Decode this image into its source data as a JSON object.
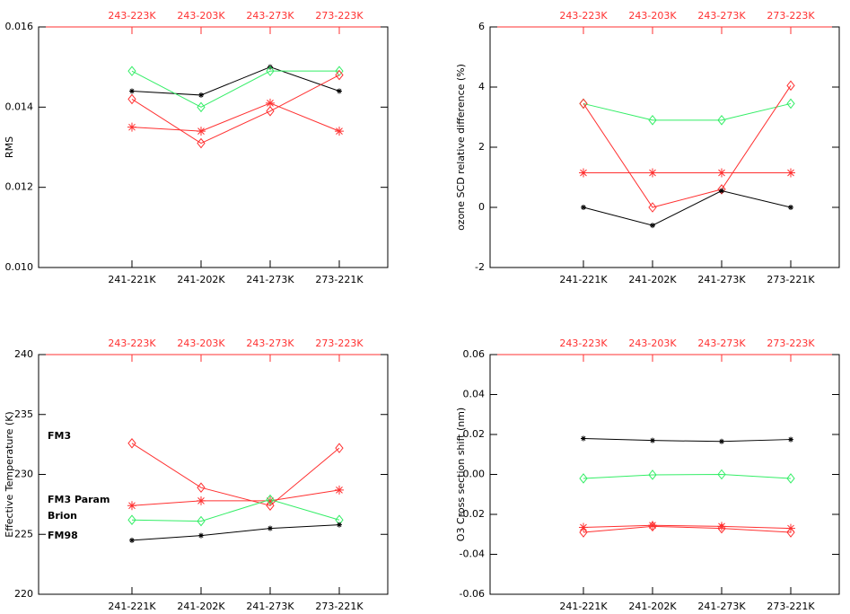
{
  "chart_data": [
    {
      "type": "line",
      "y_label": "RMS",
      "categories": [
        "241-221K",
        "241-202K",
        "241-273K",
        "273-221K"
      ],
      "top_categories": [
        "243-223K",
        "243-203K",
        "243-273K",
        "273-223K"
      ],
      "ylim": [
        0.01,
        0.016
      ],
      "yticks": [
        {
          "value": 0.01,
          "label": "0.010"
        },
        0.012,
        0.014,
        0.016
      ],
      "series": [
        {
          "color": "#000000",
          "marker": "asterisk",
          "values": [
            0.0144,
            0.0143,
            0.015,
            0.0144
          ]
        },
        {
          "color": "#33ee66",
          "marker": "diamond",
          "values": [
            0.0149,
            0.014,
            0.0149,
            0.0149
          ]
        },
        {
          "color": "#ff3030",
          "marker": "diamond",
          "values": [
            0.0142,
            0.0131,
            0.0139,
            0.0148
          ]
        },
        {
          "color": "#ff3030",
          "marker": "asterisk",
          "values": [
            0.0135,
            0.0134,
            0.0141,
            0.0134
          ]
        }
      ]
    },
    {
      "type": "line",
      "y_label": "ozone SCD relative difference (%)",
      "categories": [
        "241-221K",
        "241-202K",
        "241-273K",
        "273-221K"
      ],
      "top_categories": [
        "243-223K",
        "243-203K",
        "243-273K",
        "273-223K"
      ],
      "ylim": [
        -2,
        6
      ],
      "yticks": [
        -2,
        0,
        2,
        4,
        6
      ],
      "series": [
        {
          "color": "#33ee66",
          "marker": "diamond",
          "values": [
            3.45,
            2.9,
            2.9,
            3.45
          ]
        },
        {
          "color": "#ff3030",
          "marker": "diamond",
          "values": [
            3.45,
            0,
            0.6,
            4.05
          ]
        },
        {
          "color": "#ff3030",
          "marker": "asterisk",
          "values": [
            1.15,
            1.15,
            1.15,
            1.15
          ]
        },
        {
          "color": "#000000",
          "marker": "asterisk",
          "values": [
            0,
            -0.6,
            0.55,
            0
          ]
        }
      ]
    },
    {
      "type": "line",
      "y_label": "Effective Temperature (K)",
      "categories": [
        "241-221K",
        "241-202K",
        "241-273K",
        "273-221K"
      ],
      "top_categories": [
        "243-223K",
        "243-203K",
        "243-273K",
        "273-223K"
      ],
      "ylim": [
        220,
        240
      ],
      "yticks": [
        220,
        225,
        230,
        235,
        240
      ],
      "series": [
        {
          "name": "FM3",
          "color": "#ff3030",
          "marker": "diamond",
          "values": [
            232.6,
            228.9,
            227.4,
            232.2
          ]
        },
        {
          "name": "FM3 Param",
          "color": "#ff3030",
          "marker": "asterisk",
          "values": [
            227.4,
            227.8,
            227.8,
            228.7
          ]
        },
        {
          "name": "Brion",
          "color": "#33ee66",
          "marker": "diamond",
          "values": [
            226.2,
            226.1,
            227.9,
            226.2
          ]
        },
        {
          "name": "FM98",
          "color": "#000000",
          "marker": "asterisk",
          "values": [
            224.5,
            224.9,
            225.5,
            225.8
          ]
        }
      ]
    },
    {
      "type": "line",
      "y_label": "O3 Cross section shift (nm)",
      "categories": [
        "241-221K",
        "241-202K",
        "241-273K",
        "273-221K"
      ],
      "top_categories": [
        "243-223K",
        "243-203K",
        "243-273K",
        "273-223K"
      ],
      "ylim": [
        -0.06,
        0.06
      ],
      "yticks": [
        -0.06,
        -0.04,
        -0.02,
        {
          "value": 0,
          "label": "0.00"
        },
        0.02,
        0.04,
        0.06
      ],
      "series": [
        {
          "color": "#000000",
          "marker": "asterisk",
          "values": [
            0.018,
            0.017,
            0.0165,
            0.0175
          ]
        },
        {
          "color": "#33ee66",
          "marker": "diamond",
          "values": [
            -0.002,
            -0.0002,
            0,
            -0.002
          ]
        },
        {
          "color": "#ff3030",
          "marker": "diamond",
          "values": [
            -0.029,
            -0.026,
            -0.027,
            -0.029
          ]
        },
        {
          "color": "#ff3030",
          "marker": "asterisk",
          "values": [
            -0.0265,
            -0.0255,
            -0.026,
            -0.027
          ]
        }
      ]
    }
  ]
}
